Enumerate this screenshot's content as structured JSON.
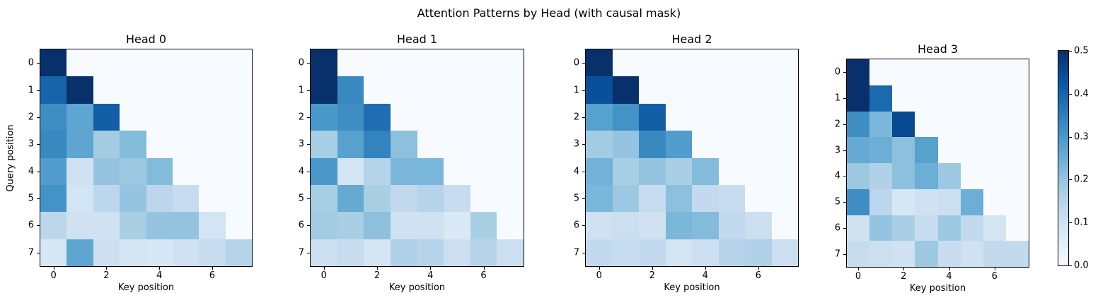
{
  "figure": {
    "suptitle": "Attention Patterns by Head (with causal mask)",
    "background_color": "#ffffff",
    "text_color": "#000000"
  },
  "chart_data": {
    "type": "heatmap",
    "colormap": "Blues",
    "vmin": 0.0,
    "vmax": 0.5,
    "n_rows": 8,
    "n_cols": 8,
    "mask": "causal: upper-triangle cells masked, rendered at value 0",
    "xlabel": "Key position",
    "ylabel": "Query position",
    "x_tick_labels": [
      "0",
      "2",
      "4",
      "6"
    ],
    "x_tick_positions": [
      0,
      2,
      4,
      6
    ],
    "y_tick_labels": [
      "0",
      "1",
      "2",
      "3",
      "4",
      "5",
      "6",
      "7"
    ],
    "y_tick_positions": [
      0,
      1,
      2,
      3,
      4,
      5,
      6,
      7
    ],
    "subplots": [
      {
        "title": "Head 0",
        "values": [
          [
            1.0,
            null,
            null,
            null,
            null,
            null,
            null,
            null
          ],
          [
            0.4,
            0.6,
            null,
            null,
            null,
            null,
            null,
            null
          ],
          [
            0.32,
            0.27,
            0.41,
            null,
            null,
            null,
            null,
            null
          ],
          [
            0.33,
            0.27,
            0.18,
            0.22,
            null,
            null,
            null,
            null
          ],
          [
            0.29,
            0.1,
            0.2,
            0.19,
            0.22,
            null,
            null,
            null
          ],
          [
            0.31,
            0.09,
            0.14,
            0.2,
            0.14,
            0.12,
            null,
            null
          ],
          [
            0.14,
            0.1,
            0.1,
            0.17,
            0.2,
            0.2,
            0.09,
            null
          ],
          [
            0.08,
            0.27,
            0.11,
            0.09,
            0.08,
            0.1,
            0.12,
            0.15
          ]
        ]
      },
      {
        "title": "Head 1",
        "values": [
          [
            1.0,
            null,
            null,
            null,
            null,
            null,
            null,
            null
          ],
          [
            0.67,
            0.33,
            null,
            null,
            null,
            null,
            null,
            null
          ],
          [
            0.3,
            0.32,
            0.38,
            null,
            null,
            null,
            null,
            null
          ],
          [
            0.17,
            0.28,
            0.34,
            0.21,
            null,
            null,
            null,
            null
          ],
          [
            0.3,
            0.09,
            0.15,
            0.23,
            0.23,
            null,
            null,
            null
          ],
          [
            0.17,
            0.26,
            0.17,
            0.13,
            0.15,
            0.12,
            null,
            null
          ],
          [
            0.18,
            0.17,
            0.21,
            0.1,
            0.1,
            0.07,
            0.17,
            null
          ],
          [
            0.11,
            0.12,
            0.09,
            0.16,
            0.15,
            0.11,
            0.15,
            0.11
          ]
        ]
      },
      {
        "title": "Head 2",
        "values": [
          [
            1.0,
            null,
            null,
            null,
            null,
            null,
            null,
            null
          ],
          [
            0.44,
            0.56,
            null,
            null,
            null,
            null,
            null,
            null
          ],
          [
            0.28,
            0.31,
            0.41,
            null,
            null,
            null,
            null,
            null
          ],
          [
            0.18,
            0.2,
            0.33,
            0.29,
            null,
            null,
            null,
            null
          ],
          [
            0.24,
            0.17,
            0.2,
            0.17,
            0.22,
            null,
            null,
            null
          ],
          [
            0.23,
            0.19,
            0.12,
            0.21,
            0.13,
            0.12,
            null,
            null
          ],
          [
            0.1,
            0.11,
            0.1,
            0.23,
            0.22,
            0.13,
            0.11,
            null
          ],
          [
            0.13,
            0.12,
            0.13,
            0.09,
            0.11,
            0.15,
            0.16,
            0.11
          ]
        ]
      },
      {
        "title": "Head 3",
        "values": [
          [
            1.0,
            null,
            null,
            null,
            null,
            null,
            null,
            null
          ],
          [
            0.61,
            0.39,
            null,
            null,
            null,
            null,
            null,
            null
          ],
          [
            0.32,
            0.23,
            0.45,
            null,
            null,
            null,
            null,
            null
          ],
          [
            0.26,
            0.25,
            0.21,
            0.28,
            null,
            null,
            null,
            null
          ],
          [
            0.19,
            0.16,
            0.21,
            0.25,
            0.19,
            null,
            null,
            null
          ],
          [
            0.32,
            0.14,
            0.08,
            0.1,
            0.11,
            0.25,
            null,
            null
          ],
          [
            0.1,
            0.2,
            0.17,
            0.12,
            0.19,
            0.13,
            0.09,
            null
          ],
          [
            0.12,
            0.11,
            0.1,
            0.19,
            0.12,
            0.1,
            0.13,
            0.13
          ]
        ]
      }
    ],
    "colorbar": {
      "tick_labels": [
        "0.0",
        "0.1",
        "0.2",
        "0.3",
        "0.4",
        "0.5"
      ],
      "tick_values": [
        0.0,
        0.1,
        0.2,
        0.3,
        0.4,
        0.5
      ]
    }
  }
}
